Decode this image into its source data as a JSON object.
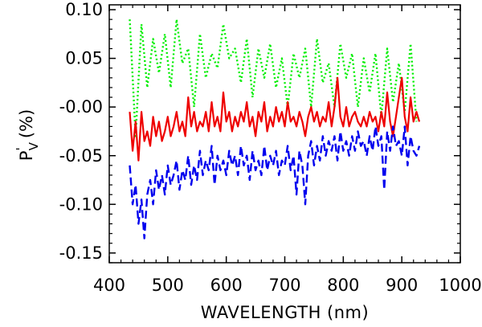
{
  "chart_data": {
    "type": "line",
    "title": "",
    "xlabel": "WAVELENGTH (nm)",
    "ylabel": "P",
    "ylabel_sup": "'",
    "ylabel_sub": "V",
    "ylabel_unit": "(%)",
    "xlim": [
      400,
      1000
    ],
    "ylim": [
      -0.16,
      0.105
    ],
    "grid": false,
    "legend": "none",
    "x_ticks": [
      "400",
      "500",
      "600",
      "700",
      "800",
      "900",
      "1000"
    ],
    "y_ticks": [
      "0.10",
      "0.05",
      "-0.00",
      "-0.05",
      "-0.10",
      "-0.15"
    ],
    "series": [
      {
        "name": "green dotted",
        "color": "#00ee00",
        "style": "dotted",
        "x": [
          435,
          445,
          455,
          465,
          475,
          485,
          495,
          505,
          515,
          525,
          535,
          545,
          555,
          565,
          575,
          585,
          595,
          605,
          615,
          625,
          635,
          645,
          655,
          665,
          675,
          685,
          695,
          705,
          715,
          725,
          735,
          745,
          755,
          765,
          775,
          785,
          795,
          805,
          815,
          825,
          835,
          845,
          855,
          865,
          875,
          885,
          895,
          905,
          915,
          925
        ],
        "y": [
          0.09,
          -0.03,
          0.085,
          0.02,
          0.07,
          0.035,
          0.075,
          0.02,
          0.09,
          0.045,
          0.06,
          0.0,
          0.075,
          0.03,
          0.055,
          0.04,
          0.085,
          0.05,
          0.06,
          0.025,
          0.07,
          0.01,
          0.06,
          0.03,
          0.065,
          0.02,
          0.05,
          0.0,
          0.055,
          0.03,
          0.06,
          0.0,
          0.07,
          0.025,
          0.045,
          0.0,
          0.065,
          0.03,
          0.055,
          0.0,
          0.05,
          0.015,
          0.055,
          -0.01,
          0.06,
          0.005,
          0.045,
          -0.005,
          0.065,
          -0.015
        ]
      },
      {
        "name": "red solid",
        "color": "#ee0000",
        "style": "solid",
        "x": [
          435,
          440,
          445,
          450,
          455,
          460,
          465,
          470,
          475,
          480,
          485,
          490,
          495,
          500,
          505,
          510,
          515,
          520,
          525,
          530,
          535,
          540,
          545,
          550,
          555,
          560,
          565,
          570,
          575,
          580,
          585,
          590,
          595,
          600,
          605,
          610,
          615,
          620,
          625,
          630,
          635,
          640,
          645,
          650,
          655,
          660,
          665,
          670,
          675,
          680,
          685,
          690,
          695,
          700,
          705,
          710,
          715,
          720,
          725,
          730,
          735,
          740,
          745,
          750,
          755,
          760,
          765,
          770,
          775,
          780,
          785,
          790,
          795,
          800,
          805,
          810,
          815,
          820,
          825,
          830,
          835,
          840,
          845,
          850,
          855,
          860,
          865,
          870,
          875,
          880,
          885,
          890,
          895,
          900,
          905,
          910,
          915,
          920,
          925,
          930
        ],
        "y": [
          -0.005,
          -0.045,
          -0.015,
          -0.055,
          -0.005,
          -0.035,
          -0.025,
          -0.04,
          -0.01,
          -0.03,
          -0.015,
          -0.035,
          -0.025,
          -0.01,
          -0.03,
          -0.02,
          -0.005,
          -0.025,
          -0.015,
          -0.03,
          0.01,
          -0.02,
          -0.005,
          -0.025,
          -0.015,
          -0.02,
          -0.005,
          -0.025,
          0.005,
          -0.02,
          -0.01,
          -0.025,
          0.015,
          -0.015,
          -0.005,
          -0.025,
          -0.01,
          -0.02,
          -0.005,
          -0.015,
          0.005,
          -0.02,
          -0.01,
          -0.03,
          -0.005,
          -0.015,
          0.005,
          -0.025,
          -0.01,
          -0.02,
          0.0,
          -0.015,
          -0.005,
          -0.02,
          0.005,
          -0.015,
          -0.01,
          -0.02,
          -0.005,
          -0.015,
          -0.03,
          -0.01,
          0.0,
          -0.015,
          -0.005,
          -0.02,
          -0.01,
          -0.015,
          0.005,
          -0.02,
          0.0,
          0.03,
          -0.01,
          -0.02,
          0.0,
          -0.02,
          -0.01,
          -0.005,
          -0.015,
          -0.02,
          -0.01,
          -0.02,
          -0.005,
          -0.015,
          -0.01,
          -0.025,
          -0.005,
          -0.02,
          0.015,
          -0.015,
          -0.03,
          -0.01,
          0.01,
          0.03,
          -0.01,
          -0.025,
          0.01,
          -0.015,
          -0.005,
          -0.015
        ]
      },
      {
        "name": "blue dashed",
        "color": "#0000ee",
        "style": "dashed",
        "x": [
          435,
          440,
          445,
          450,
          455,
          460,
          465,
          470,
          475,
          480,
          485,
          490,
          495,
          500,
          505,
          510,
          515,
          520,
          525,
          530,
          535,
          540,
          545,
          550,
          555,
          560,
          565,
          570,
          575,
          580,
          585,
          590,
          595,
          600,
          605,
          610,
          615,
          620,
          625,
          630,
          635,
          640,
          645,
          650,
          655,
          660,
          665,
          670,
          675,
          680,
          685,
          690,
          695,
          700,
          705,
          710,
          715,
          720,
          725,
          730,
          735,
          740,
          745,
          750,
          755,
          760,
          765,
          770,
          775,
          780,
          785,
          790,
          795,
          800,
          805,
          810,
          815,
          820,
          825,
          830,
          835,
          840,
          845,
          850,
          855,
          860,
          865,
          870,
          875,
          880,
          885,
          890,
          895,
          900,
          905,
          910,
          915,
          920,
          925,
          930
        ],
        "y": [
          -0.06,
          -0.1,
          -0.08,
          -0.12,
          -0.095,
          -0.135,
          -0.09,
          -0.075,
          -0.1,
          -0.065,
          -0.085,
          -0.07,
          -0.09,
          -0.06,
          -0.08,
          -0.07,
          -0.055,
          -0.085,
          -0.065,
          -0.075,
          -0.05,
          -0.08,
          -0.06,
          -0.075,
          -0.045,
          -0.07,
          -0.055,
          -0.065,
          -0.04,
          -0.08,
          -0.05,
          -0.065,
          -0.055,
          -0.07,
          -0.045,
          -0.06,
          -0.05,
          -0.07,
          -0.04,
          -0.06,
          -0.05,
          -0.075,
          -0.045,
          -0.065,
          -0.055,
          -0.07,
          -0.04,
          -0.065,
          -0.05,
          -0.06,
          -0.045,
          -0.07,
          -0.055,
          -0.06,
          -0.04,
          -0.065,
          -0.05,
          -0.09,
          -0.045,
          -0.06,
          -0.1,
          -0.05,
          -0.035,
          -0.06,
          -0.04,
          -0.055,
          -0.03,
          -0.05,
          -0.035,
          -0.045,
          -0.03,
          -0.055,
          -0.025,
          -0.045,
          -0.035,
          -0.05,
          -0.03,
          -0.045,
          -0.025,
          -0.04,
          -0.035,
          -0.05,
          -0.03,
          -0.045,
          -0.02,
          -0.04,
          -0.03,
          -0.085,
          -0.025,
          -0.045,
          -0.02,
          -0.04,
          -0.035,
          -0.05,
          -0.02,
          -0.06,
          -0.03,
          -0.045,
          -0.05,
          -0.04
        ]
      }
    ]
  }
}
